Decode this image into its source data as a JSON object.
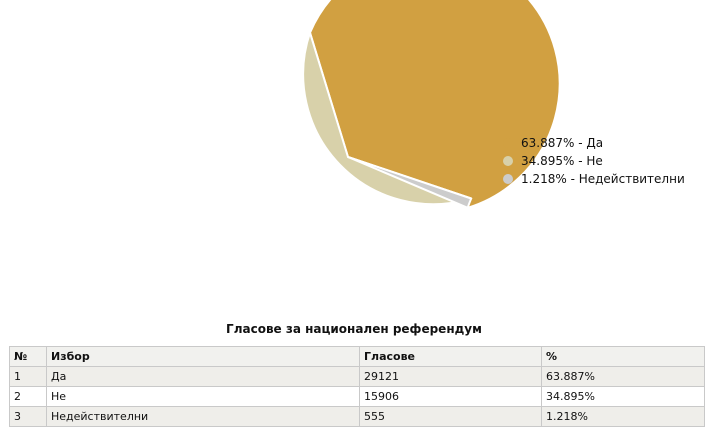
{
  "chart_data": {
    "type": "pie",
    "title": "",
    "slices": [
      {
        "label": "Да",
        "percent": 63.887,
        "legend": "63.887% - Да",
        "color": "#d1a041"
      },
      {
        "label": "Не",
        "percent": 34.895,
        "legend": "34.895% - Не",
        "color": "#d8d1aa"
      },
      {
        "label": "Недействителни",
        "percent": 1.218,
        "legend": "1.218% - Недействителни",
        "color": "#cccccc"
      }
    ],
    "legend_position": "right"
  },
  "table": {
    "title": "Гласове за национален референдум",
    "headers": {
      "no": "№",
      "choice": "Избор",
      "votes": "Гласове",
      "percent": "%"
    },
    "rows": [
      {
        "no": "1",
        "choice": "Да",
        "votes": "29121",
        "percent": "63.887%"
      },
      {
        "no": "2",
        "choice": "Не",
        "votes": "15906",
        "percent": "34.895%"
      },
      {
        "no": "3",
        "choice": "Недействителни",
        "votes": "555",
        "percent": "1.218%"
      }
    ]
  }
}
